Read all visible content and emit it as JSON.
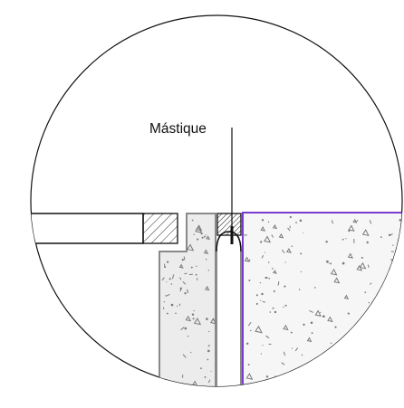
{
  "label": "Mástique",
  "colors": {
    "line": "#111111",
    "outline": "#8a8a8a",
    "concrete_fill": "#ececec",
    "aggregate": "#7a7a7a",
    "joint_edge": "#7a3cd0"
  }
}
